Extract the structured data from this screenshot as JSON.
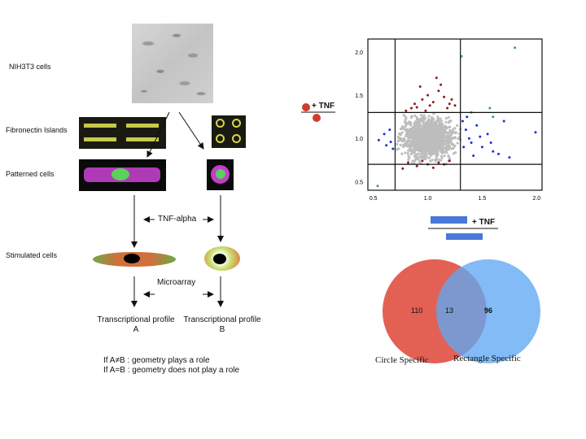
{
  "left_panel": {
    "row_labels": {
      "cells": "NIH3T3 cells",
      "islands": "Fibronectin Islands",
      "patterned": "Patterned cells",
      "stimulated": "Stimulated cells"
    },
    "tnf_step": "TNF-alpha",
    "microarray_step": "Microarray",
    "profile_a": [
      "Transcriptional profile",
      "A"
    ],
    "profile_b": [
      "Transcriptional profile",
      "B"
    ],
    "conclusion": [
      "If A≠B : geometry plays a role",
      "If A=B : geometry does not play a role"
    ]
  },
  "scatter_legend": "+ TNF",
  "bar_legend": "+ TNF",
  "venn": {
    "left_only": "110",
    "overlap": "13",
    "right_only": "96",
    "left_label": "Circle Specific",
    "right_label": "Rectangle Specific",
    "left_color": "#e0584b",
    "right_color": "#5fa8f2"
  },
  "chart_data": {
    "type": "scatter",
    "x_ticks": [
      "0.5",
      "1.0",
      "1.5",
      "2.0"
    ],
    "y_ticks": [
      "0.5",
      "1.0",
      "1.5",
      "2.0"
    ],
    "xlim": [
      0.5,
      2.0
    ],
    "ylim": [
      0.4,
      2.15
    ],
    "thresholds_x": [
      0.7,
      1.3
    ],
    "thresholds_y": [
      0.7,
      1.3
    ],
    "colors": {
      "gray": "#bdbdbd",
      "dark_red": "#8b1a1a",
      "blue": "#1f2fd6",
      "teal": "#2aa198"
    },
    "red_points": [
      [
        0.8,
        1.32
      ],
      [
        0.85,
        1.35
      ],
      [
        0.9,
        1.36
      ],
      [
        0.95,
        1.45
      ],
      [
        1.0,
        1.5
      ],
      [
        1.05,
        1.42
      ],
      [
        1.1,
        1.55
      ],
      [
        1.15,
        1.48
      ],
      [
        1.2,
        1.4
      ],
      [
        0.93,
        1.6
      ],
      [
        1.08,
        1.7
      ],
      [
        1.12,
        1.62
      ],
      [
        1.02,
        1.38
      ],
      [
        0.88,
        1.4
      ],
      [
        1.18,
        1.35
      ],
      [
        1.25,
        1.38
      ],
      [
        0.98,
        1.32
      ],
      [
        1.22,
        1.45
      ],
      [
        0.82,
        0.72
      ],
      [
        0.9,
        0.68
      ],
      [
        1.0,
        0.7
      ],
      [
        1.1,
        0.72
      ],
      [
        0.95,
        0.74
      ],
      [
        1.05,
        0.66
      ],
      [
        0.77,
        0.65
      ],
      [
        1.15,
        0.7
      ],
      [
        1.2,
        0.74
      ]
    ],
    "blue_points": [
      [
        1.32,
        1.2
      ],
      [
        1.35,
        1.1
      ],
      [
        1.38,
        1.0
      ],
      [
        1.4,
        0.95
      ],
      [
        1.45,
        1.15
      ],
      [
        1.5,
        0.9
      ],
      [
        1.55,
        1.05
      ],
      [
        1.6,
        0.85
      ],
      [
        1.33,
        0.9
      ],
      [
        1.42,
        0.8
      ],
      [
        1.65,
        0.82
      ],
      [
        1.7,
        1.2
      ],
      [
        1.36,
        1.25
      ],
      [
        1.48,
        1.02
      ],
      [
        1.58,
        0.95
      ],
      [
        1.99,
        1.07
      ],
      [
        0.55,
        0.98
      ],
      [
        0.6,
        1.05
      ],
      [
        0.62,
        0.92
      ],
      [
        0.65,
        1.1
      ],
      [
        0.68,
        0.88
      ],
      [
        0.66,
        0.96
      ],
      [
        1.75,
        0.78
      ]
    ],
    "teal_points": [
      [
        1.31,
        1.95
      ],
      [
        1.8,
        2.05
      ],
      [
        1.4,
        1.3
      ],
      [
        1.57,
        1.35
      ],
      [
        0.54,
        0.45
      ],
      [
        1.6,
        1.25
      ]
    ]
  }
}
